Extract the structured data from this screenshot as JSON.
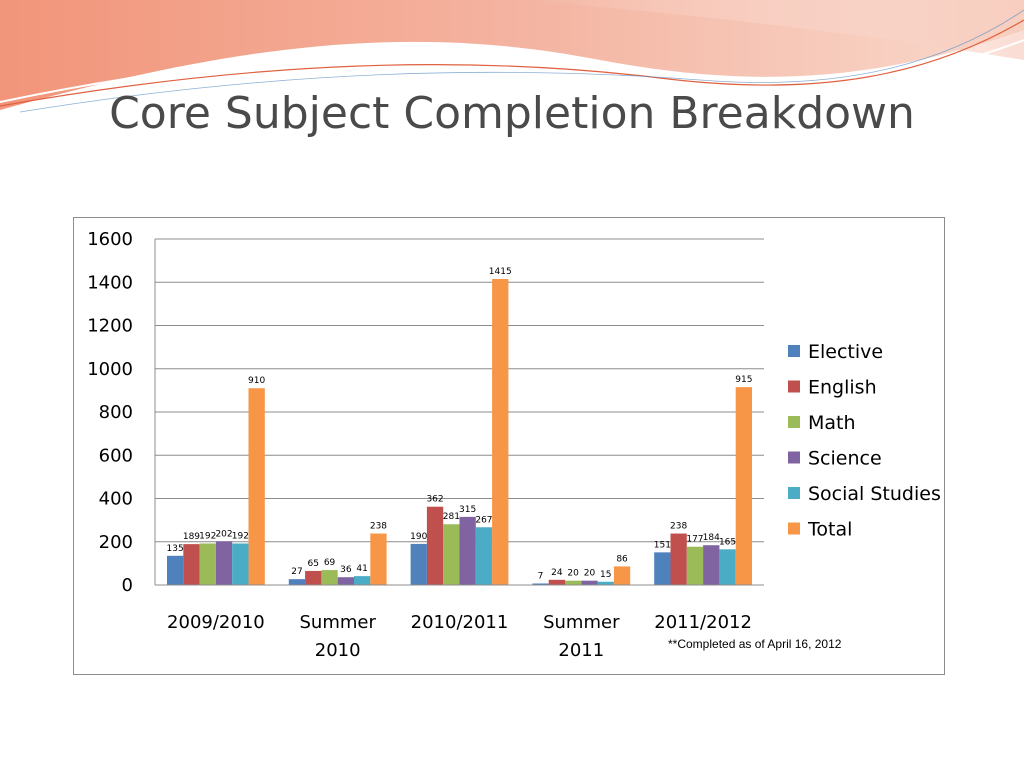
{
  "slide": {
    "title": "Core Subject Completion Breakdown",
    "footnote": "**Completed as of April 16, 2012"
  },
  "chart_data": {
    "type": "bar",
    "categories": [
      "2009/2010",
      "Summer 2010",
      "2010/2011",
      "Summer 2011",
      "2011/2012"
    ],
    "series": [
      {
        "name": "Elective",
        "color": "#4F81BD",
        "values": [
          135,
          27,
          190,
          7,
          151
        ]
      },
      {
        "name": "English",
        "color": "#C0504D",
        "values": [
          189,
          65,
          362,
          24,
          238
        ]
      },
      {
        "name": "Math",
        "color": "#9BBB59",
        "values": [
          192,
          69,
          281,
          20,
          177
        ]
      },
      {
        "name": "Science",
        "color": "#8064A2",
        "values": [
          202,
          36,
          315,
          20,
          184
        ]
      },
      {
        "name": "Social Studies",
        "color": "#4BACC6",
        "values": [
          192,
          41,
          267,
          15,
          165
        ]
      },
      {
        "name": "Total",
        "color": "#F79646",
        "values": [
          910,
          238,
          1415,
          86,
          915
        ]
      }
    ],
    "ylim": [
      0,
      1600
    ],
    "yticks": [
      0,
      200,
      400,
      600,
      800,
      1000,
      1200,
      1400,
      1600
    ],
    "grid": true,
    "legend": "right",
    "data_labels": true
  }
}
